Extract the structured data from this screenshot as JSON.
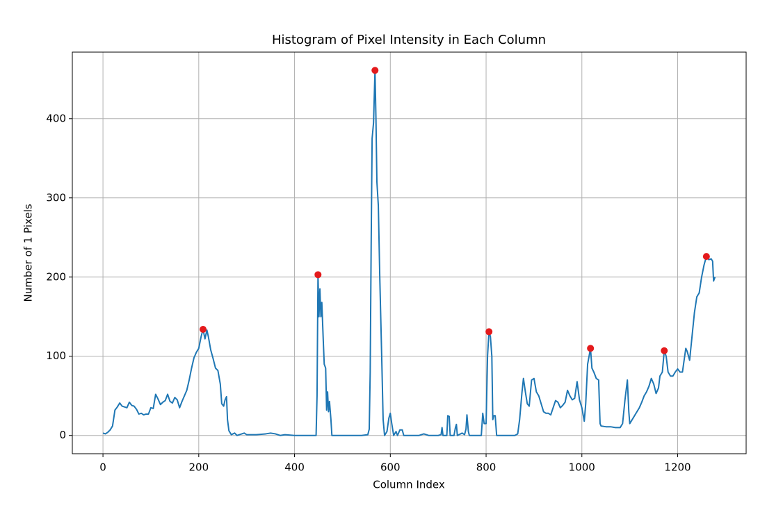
{
  "chart_data": {
    "type": "line",
    "title": "Histogram of Pixel Intensity in Each Column",
    "x_label": "Column Index",
    "y_label": "Number of 1 Pixels",
    "color": "#1f77b4",
    "x": [
      0,
      5,
      10,
      15,
      20,
      25,
      30,
      35,
      40,
      45,
      50,
      55,
      60,
      65,
      70,
      75,
      80,
      85,
      90,
      95,
      100,
      105,
      110,
      115,
      120,
      125,
      130,
      135,
      140,
      145,
      150,
      155,
      160,
      165,
      170,
      175,
      180,
      185,
      190,
      195,
      200,
      205,
      209,
      213,
      217,
      220,
      225,
      230,
      235,
      240,
      245,
      248,
      252,
      255,
      258,
      260,
      263,
      268,
      275,
      280,
      290,
      295,
      300,
      320,
      340,
      350,
      360,
      370,
      380,
      400,
      420,
      445,
      447,
      449,
      451,
      453,
      455,
      457,
      460,
      462,
      465,
      467,
      469,
      471,
      473,
      476,
      478,
      500,
      540,
      553,
      556,
      558,
      560,
      562,
      565,
      568,
      570,
      572,
      575,
      578,
      582,
      585,
      588,
      593,
      597,
      600,
      603,
      607,
      612,
      615,
      620,
      625,
      628,
      660,
      670,
      680,
      700,
      706,
      708,
      710,
      718,
      720,
      723,
      725,
      733,
      736,
      738,
      740,
      750,
      755,
      758,
      760,
      763,
      765,
      790,
      793,
      796,
      800,
      803,
      806,
      809,
      812,
      814,
      816,
      819,
      822,
      860,
      866,
      870,
      875,
      878,
      882,
      886,
      890,
      895,
      900,
      905,
      910,
      915,
      920,
      925,
      930,
      935,
      940,
      945,
      950,
      955,
      960,
      965,
      970,
      975,
      980,
      985,
      990,
      995,
      1000,
      1005,
      1008,
      1012,
      1015,
      1018,
      1021,
      1025,
      1030,
      1035,
      1038,
      1040,
      1050,
      1060,
      1070,
      1080,
      1085,
      1090,
      1095,
      1098,
      1100,
      1105,
      1110,
      1115,
      1120,
      1125,
      1130,
      1135,
      1140,
      1145,
      1150,
      1155,
      1160,
      1163,
      1168,
      1172,
      1176,
      1180,
      1185,
      1190,
      1195,
      1200,
      1205,
      1210,
      1213,
      1217,
      1220,
      1225,
      1230,
      1235,
      1240,
      1245,
      1250,
      1255,
      1260,
      1265,
      1270,
      1273,
      1275,
      1278
    ],
    "values": [
      3,
      2,
      4,
      7,
      12,
      32,
      36,
      41,
      37,
      36,
      35,
      42,
      38,
      37,
      33,
      27,
      28,
      26,
      27,
      27,
      35,
      34,
      52,
      46,
      39,
      42,
      44,
      52,
      43,
      41,
      48,
      45,
      35,
      43,
      50,
      57,
      70,
      85,
      98,
      105,
      110,
      125,
      134,
      122,
      133,
      125,
      108,
      97,
      85,
      82,
      65,
      40,
      37,
      45,
      49,
      20,
      6,
      1,
      3,
      0,
      2,
      3,
      1,
      1,
      2,
      3,
      2,
      0,
      1,
      0,
      0,
      0,
      50,
      203,
      150,
      185,
      150,
      168,
      120,
      90,
      85,
      32,
      55,
      30,
      43,
      20,
      0,
      0,
      0,
      1,
      8,
      80,
      240,
      375,
      395,
      461,
      400,
      320,
      290,
      200,
      100,
      20,
      0,
      5,
      22,
      28,
      15,
      0,
      5,
      0,
      7,
      7,
      0,
      0,
      2,
      0,
      0,
      1,
      10,
      0,
      0,
      25,
      24,
      0,
      0,
      10,
      14,
      0,
      3,
      1,
      8,
      26,
      5,
      0,
      0,
      28,
      15,
      15,
      100,
      131,
      125,
      100,
      20,
      25,
      25,
      0,
      0,
      2,
      20,
      55,
      72,
      55,
      40,
      37,
      70,
      72,
      55,
      50,
      40,
      30,
      28,
      28,
      26,
      35,
      44,
      42,
      35,
      38,
      42,
      57,
      50,
      45,
      47,
      68,
      45,
      35,
      18,
      40,
      90,
      100,
      110,
      85,
      80,
      72,
      70,
      15,
      12,
      11,
      11,
      10,
      10,
      15,
      45,
      70,
      30,
      15,
      20,
      25,
      30,
      35,
      42,
      50,
      55,
      62,
      72,
      65,
      53,
      60,
      75,
      80,
      107,
      100,
      80,
      75,
      75,
      80,
      84,
      80,
      80,
      93,
      110,
      106,
      95,
      125,
      155,
      175,
      180,
      200,
      215,
      226,
      222,
      223,
      220,
      195,
      200
    ],
    "peaks": {
      "type": "scatter",
      "color": "#e41a1c",
      "x": [
        209,
        449,
        568,
        806,
        1018,
        1172,
        1260
      ],
      "values": [
        134,
        203,
        461,
        131,
        110,
        107,
        226
      ]
    },
    "xlim": [
      -64,
      1343
    ],
    "ylim": [
      -23.05,
      484.05
    ],
    "xticks": [
      0,
      200,
      400,
      600,
      800,
      1000,
      1200
    ],
    "yticks": [
      0,
      100,
      200,
      300,
      400
    ],
    "grid": true
  }
}
